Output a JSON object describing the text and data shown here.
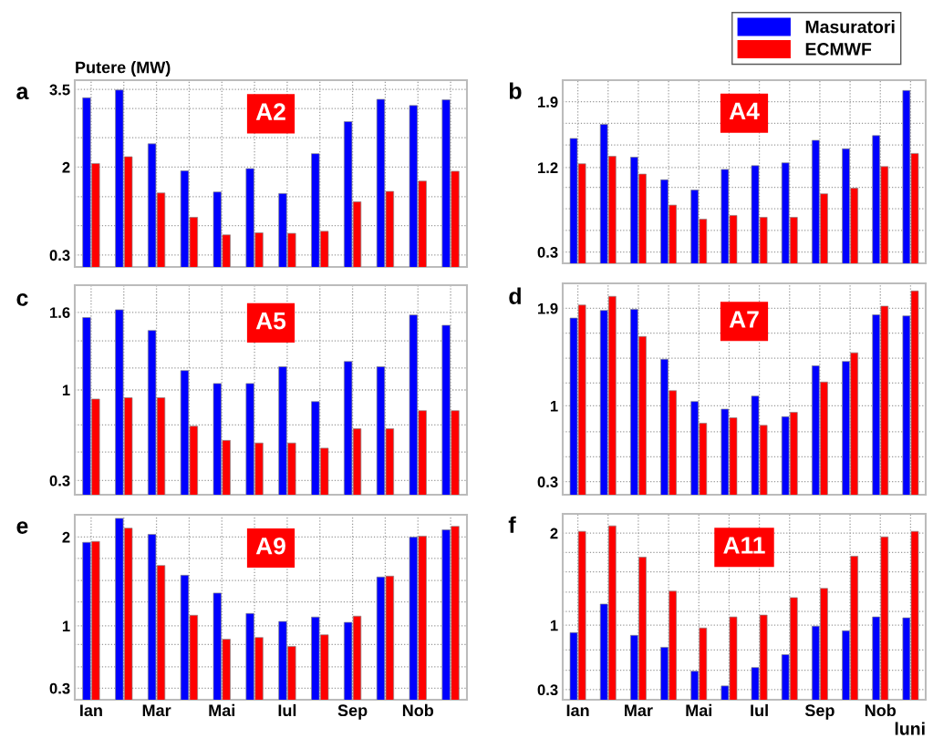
{
  "chart_data": [
    {
      "type": "bar",
      "title": "A2",
      "ylabel": "Putere (MW)",
      "annotations": [
        "a"
      ],
      "legend": "top right",
      "grid": true,
      "categories": [
        null,
        null,
        null,
        null,
        null,
        null,
        null,
        null,
        null,
        null,
        null,
        null
      ],
      "ylim": [
        0.07,
        3.68
      ],
      "yticks": [
        0.3,
        {
          "value": 0.87,
          "label": null
        },
        {
          "value": 1.43,
          "label": null
        },
        2,
        {
          "value": 2.57,
          "label": null
        },
        {
          "value": 3.13,
          "label": null
        },
        3.5
      ],
      "series": [
        {
          "name": "Masuratori",
          "color": "#0000ff",
          "values": [
            3.34,
            3.49,
            2.45,
            1.93,
            1.52,
            1.97,
            1.49,
            2.26,
            2.88,
            3.31,
            3.19,
            3.3
          ]
        },
        {
          "name": "ECMWF",
          "color": "#ff0000",
          "values": [
            2.07,
            2.2,
            1.5,
            1.03,
            0.69,
            0.73,
            0.72,
            0.76,
            1.33,
            1.53,
            1.73,
            1.92
          ]
        }
      ]
    },
    {
      "type": "bar",
      "title": "A4",
      "annotations": [
        "b"
      ],
      "grid": true,
      "categories": [
        null,
        null,
        null,
        null,
        null,
        null,
        null,
        null,
        null,
        null,
        null,
        null
      ],
      "ylim": [
        0.18,
        2.13
      ],
      "yticks": [
        0.3,
        {
          "value": 0.53,
          "label": null
        },
        {
          "value": 0.76,
          "label": null
        },
        {
          "value": 0.99,
          "label": null
        },
        1.2,
        {
          "value": 1.44,
          "label": null
        },
        {
          "value": 1.67,
          "label": null
        },
        1.9
      ],
      "series": [
        {
          "color": "#0000ff",
          "values": [
            1.51,
            1.66,
            1.31,
            1.07,
            0.96,
            1.18,
            1.22,
            1.25,
            1.49,
            1.4,
            1.54,
            2.02
          ]
        },
        {
          "color": "#ff0000",
          "values": [
            1.24,
            1.32,
            1.13,
            0.8,
            0.65,
            0.69,
            0.67,
            0.67,
            0.92,
            0.98,
            1.21,
            1.35
          ]
        }
      ]
    },
    {
      "type": "bar",
      "title": "A5",
      "annotations": [
        "c"
      ],
      "grid": true,
      "categories": [
        null,
        null,
        null,
        null,
        null,
        null,
        null,
        null,
        null,
        null,
        null,
        null
      ],
      "ylim": [
        0.19,
        1.81
      ],
      "yticks": [
        0.3,
        {
          "value": 0.52,
          "label": null
        },
        {
          "value": 0.73,
          "label": null
        },
        1,
        {
          "value": 1.17,
          "label": null
        },
        {
          "value": 1.38,
          "label": null
        },
        1.6
      ],
      "series": [
        {
          "color": "#0000ff",
          "values": [
            1.56,
            1.62,
            1.46,
            1.15,
            1.05,
            1.05,
            1.18,
            0.91,
            1.22,
            1.18,
            1.58,
            1.5
          ]
        },
        {
          "color": "#ff0000",
          "values": [
            0.93,
            0.94,
            0.94,
            0.72,
            0.61,
            0.59,
            0.59,
            0.55,
            0.7,
            0.7,
            0.84,
            0.84
          ]
        }
      ]
    },
    {
      "type": "bar",
      "title": "A7",
      "annotations": [
        "d"
      ],
      "grid": true,
      "categories": [
        null,
        null,
        null,
        null,
        null,
        null,
        null,
        null,
        null,
        null,
        null,
        null
      ],
      "ylim": [
        0.18,
        2.13
      ],
      "yticks": [
        0.3,
        {
          "value": 0.53,
          "label": null
        },
        {
          "value": 0.76,
          "label": null
        },
        1,
        {
          "value": 1.21,
          "label": null
        },
        {
          "value": 1.44,
          "label": null
        },
        {
          "value": 1.67,
          "label": null
        },
        1.9
      ],
      "series": [
        {
          "color": "#0000ff",
          "values": [
            1.81,
            1.88,
            1.89,
            1.43,
            1.04,
            0.97,
            1.09,
            0.9,
            1.37,
            1.41,
            1.84,
            1.83
          ]
        },
        {
          "color": "#ff0000",
          "values": [
            1.93,
            2.01,
            1.64,
            1.14,
            0.84,
            0.89,
            0.82,
            0.94,
            1.22,
            1.49,
            1.92,
            2.06
          ]
        }
      ]
    },
    {
      "type": "bar",
      "title": "A9",
      "annotations": [
        "e"
      ],
      "grid": true,
      "categories": [
        "Ian",
        null,
        "Mar",
        null,
        "Mai",
        null,
        "Iul",
        null,
        "Sep",
        null,
        "Nob",
        null
      ],
      "ylim": [
        0.17,
        2.25
      ],
      "yticks": [
        0.3,
        {
          "value": 0.54,
          "label": null
        },
        {
          "value": 0.79,
          "label": null
        },
        1,
        {
          "value": 1.27,
          "label": null
        },
        {
          "value": 1.51,
          "label": null
        },
        {
          "value": 1.76,
          "label": null
        },
        2
      ],
      "series": [
        {
          "color": "#0000ff",
          "values": [
            1.94,
            2.21,
            2.03,
            1.57,
            1.37,
            1.14,
            1.05,
            1.1,
            1.04,
            1.55,
            2.0,
            2.08
          ]
        },
        {
          "color": "#ff0000",
          "values": [
            1.95,
            2.1,
            1.68,
            1.12,
            0.85,
            0.87,
            0.77,
            0.9,
            1.11,
            1.56,
            2.01,
            2.12
          ]
        }
      ]
    },
    {
      "type": "bar",
      "title": "A11",
      "xlabel": "luni",
      "annotations": [
        "f"
      ],
      "grid": true,
      "categories": [
        "Ian",
        null,
        "Mar",
        null,
        "Mai",
        null,
        "Iul",
        null,
        "Sep",
        null,
        "Nob",
        null
      ],
      "ylim": [
        0.19,
        2.21
      ],
      "yticks": [
        0.3,
        {
          "value": 0.51,
          "label": null
        },
        {
          "value": 0.73,
          "label": null
        },
        1,
        {
          "value": 1.15,
          "label": null
        },
        {
          "value": 1.36,
          "label": null
        },
        {
          "value": 1.58,
          "label": null
        },
        {
          "value": 1.79,
          "label": null
        },
        2
      ],
      "series": [
        {
          "color": "#0000ff",
          "values": [
            0.92,
            1.23,
            0.89,
            0.76,
            0.5,
            0.34,
            0.54,
            0.68,
            0.99,
            0.94,
            1.09,
            1.08
          ]
        },
        {
          "color": "#ff0000",
          "values": [
            2.02,
            2.08,
            1.74,
            1.37,
            0.97,
            1.09,
            1.11,
            1.3,
            1.4,
            1.75,
            1.96,
            2.02
          ]
        }
      ]
    }
  ]
}
